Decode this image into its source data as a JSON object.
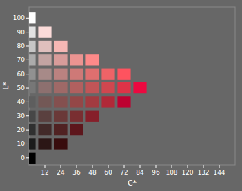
{
  "chart_data": {
    "type": "scatter",
    "marker": "square",
    "xlabel": "C*",
    "ylabel": "L*",
    "xlim": [
      0,
      156
    ],
    "ylim": [
      -5,
      108
    ],
    "xticks": [
      12,
      24,
      36,
      48,
      60,
      72,
      84,
      96,
      108,
      120,
      132,
      144
    ],
    "yticks": [
      0,
      10,
      20,
      30,
      40,
      50,
      60,
      70,
      80,
      90,
      100
    ],
    "x": [
      0,
      0,
      12,
      24,
      0,
      12,
      24,
      36,
      0,
      12,
      24,
      36,
      48,
      0,
      12,
      24,
      36,
      48,
      60,
      72,
      0,
      12,
      24,
      36,
      48,
      60,
      72,
      84,
      0,
      12,
      24,
      36,
      48,
      60,
      72,
      0,
      12,
      24,
      36,
      48,
      0,
      12,
      24,
      0,
      12,
      0
    ],
    "values": [
      0,
      10,
      10,
      10,
      20,
      20,
      20,
      20,
      30,
      30,
      30,
      30,
      30,
      40,
      40,
      40,
      40,
      40,
      40,
      40,
      50,
      50,
      50,
      50,
      50,
      50,
      50,
      50,
      60,
      60,
      60,
      60,
      60,
      60,
      60,
      70,
      70,
      70,
      70,
      70,
      80,
      80,
      80,
      90,
      90,
      100
    ],
    "colors": [
      "#000000",
      "#1b1b1b",
      "#2b1615",
      "#380c0d",
      "#303030",
      "#422a29",
      "#502222",
      "#5d161c",
      "#474747",
      "#5a403f",
      "#6a3938",
      "#792e31",
      "#861f2a",
      "#5e5e5e",
      "#735856",
      "#84504f",
      "#944747",
      "#a33b40",
      "#b12938",
      "#be0131",
      "#777777",
      "#8d706f",
      "#9f6967",
      "#b1605f",
      "#c15557",
      "#d0474f",
      "#de3347",
      "#ec0940",
      "#919191",
      "#a78a88",
      "#bb8280",
      "#ce7977",
      "#df6f6f",
      "#ef6367",
      "#fe535f",
      "#ababab",
      "#c3a4a2",
      "#d89c9a",
      "#eb9491",
      "#fd8a89",
      "#c6c6c6",
      "#dfbfbd",
      "#f5b7b4",
      "#e2e2e2",
      "#fbdbd9",
      "#ffffff"
    ]
  }
}
